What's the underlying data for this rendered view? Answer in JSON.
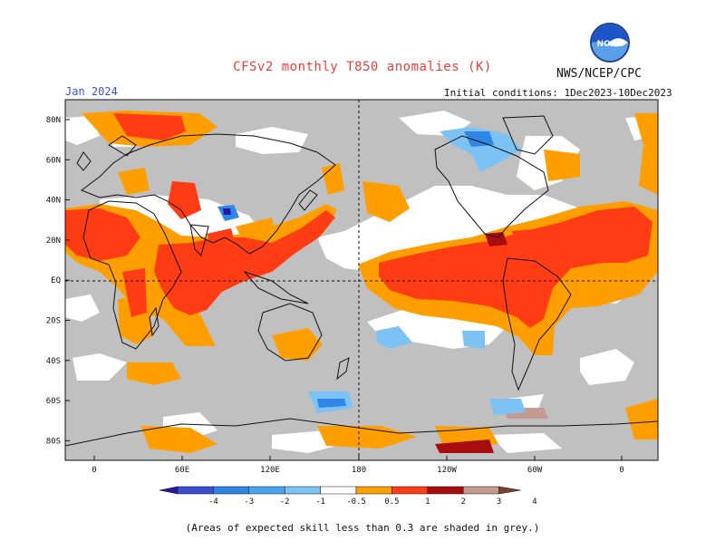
{
  "header": {
    "title": "CFSv2 monthly T850 anomalies (K)",
    "month": "Jan 2024",
    "initial_conditions": "Initial conditions: 1Dec2023-10Dec2023",
    "org": "NWS/NCEP/CPC",
    "logo_text": "NOAA"
  },
  "map": {
    "lat_labels": [
      "80N",
      "60N",
      "40N",
      "20N",
      "EQ",
      "20S",
      "40S",
      "60S",
      "80S"
    ],
    "lon_labels": [
      "0",
      "60E",
      "120E",
      "180",
      "120W",
      "60W",
      "0"
    ]
  },
  "legend": {
    "labels": [
      "-4",
      "-3",
      "-2",
      "-1",
      "-0.5",
      "0.5",
      "1",
      "2",
      "3",
      "4"
    ],
    "colors": [
      "#2a14a8",
      "#3a4fd0",
      "#2f86e6",
      "#4aa3f0",
      "#7cc2f5",
      "#ffffff",
      "#ff9e00",
      "#ff3c14",
      "#a80d0d",
      "#c49b8f",
      "#7a4030"
    ]
  },
  "colors": {
    "grey": "#c0c0c0",
    "orange": "#ff9e00",
    "red": "#ff3c14",
    "lightblue": "#7cc2f5",
    "blue": "#2f86e6"
  },
  "footnote": "(Areas of expected skill less than 0.3 are shaded in grey.)"
}
